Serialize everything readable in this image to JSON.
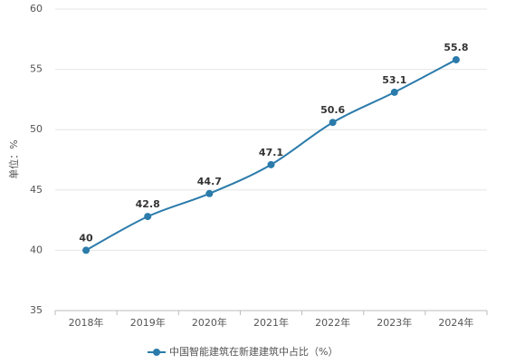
{
  "chart_data": {
    "type": "line",
    "y_label": "单位：%",
    "categories": [
      "2018年",
      "2019年",
      "2020年",
      "2021年",
      "2022年",
      "2023年",
      "2024年"
    ],
    "series": [
      {
        "name": "中国智能建筑在新建建筑中占比（%）",
        "color": "#2b7bab",
        "values": [
          40,
          42.8,
          44.7,
          47.1,
          50.6,
          53.1,
          55.8
        ]
      }
    ],
    "ylim": [
      35,
      60
    ],
    "yticks": [
      35,
      40,
      45,
      50,
      55,
      60
    ],
    "grid": true,
    "legend": "bottom"
  }
}
